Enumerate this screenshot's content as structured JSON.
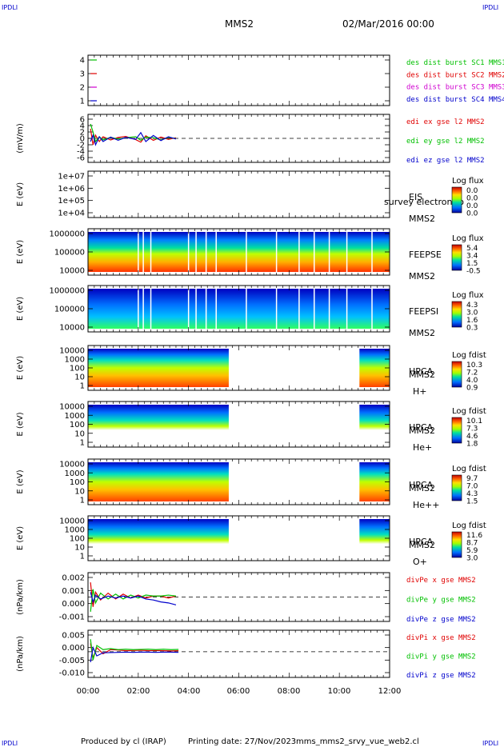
{
  "header": {
    "corner_tl": "IPDLI",
    "corner_tr": "IPDLI",
    "corner_bl": "IPDLI",
    "corner_br": "IPDLI",
    "spacecraft": "MMS2",
    "date": "02/Mar/2016 00:00"
  },
  "footer": {
    "produced": "Produced by cl (IRAP)",
    "printing": "Printing date: 27/Nov/2023",
    "script": "mms_mms2_srvy_vue_web2.cl"
  },
  "x_axis": {
    "ticks": [
      "00:00",
      "02:00",
      "04:00",
      "06:00",
      "08:00",
      "10:00",
      "12:00"
    ],
    "range_hours": [
      0,
      12
    ]
  },
  "colors": {
    "red": "#e00000",
    "green": "#00c000",
    "blue": "#0000cc",
    "magenta": "#d000d0",
    "mms1": "#00c000",
    "mms2": "#e00000",
    "mms3": "#d000d0",
    "mms4": "#0000cc"
  },
  "chart_data": [
    {
      "type": "line",
      "panel": "burst",
      "ylabel": "",
      "yticks": [
        "4",
        "3",
        "2",
        "1"
      ],
      "ylim": [
        0.5,
        4.5
      ],
      "legend": [
        "des dist burst SC1 MMS1",
        "des dist burst SC2 MMS2",
        "des dist burst SC3 MMS3",
        "des dist burst SC4 MMS4"
      ],
      "series": [
        {
          "name": "des dist burst SC1 MMS1",
          "level": 4,
          "x": [
            0.1,
            0.35
          ],
          "color": "#00c000"
        },
        {
          "name": "des dist burst SC2 MMS2",
          "level": 3,
          "x": [
            0.1,
            0.35
          ],
          "color": "#e00000"
        },
        {
          "name": "des dist burst SC3 MMS3",
          "level": 2,
          "x": [
            0.1,
            0.35
          ],
          "color": "#d000d0"
        },
        {
          "name": "des dist burst SC4 MMS4",
          "level": 1,
          "x": [
            0.1,
            0.35
          ],
          "color": "#0000cc"
        }
      ]
    },
    {
      "type": "line",
      "panel": "edi",
      "ylabel": "(mV/m)",
      "yticks": [
        "6",
        "4",
        "2",
        "0",
        "-2",
        "-4",
        "-6"
      ],
      "ylim": [
        -6,
        6
      ],
      "legend": [
        "edi ex gse l2 MMS2",
        "edi ey gse l2 MMS2",
        "edi ez gse l2 MMS2"
      ],
      "series": [
        {
          "name": "edi ex gse l2 MMS2",
          "color": "#e00000",
          "x": [
            0.1,
            0.2,
            0.3,
            0.45,
            0.6,
            0.9,
            1.2,
            1.5,
            1.9,
            2.1,
            2.3,
            2.6,
            2.9,
            3.2,
            3.5
          ],
          "y": [
            3,
            -2,
            1,
            -1,
            0.5,
            -0.5,
            0.3,
            0.6,
            -0.4,
            -1.2,
            0.8,
            -0.6,
            0.4,
            -0.3,
            0.2
          ]
        },
        {
          "name": "edi ey gse l2 MMS2",
          "color": "#00c000",
          "x": [
            0.1,
            0.2,
            0.3,
            0.45,
            0.6,
            0.9,
            1.2,
            1.5,
            1.9,
            2.1,
            2.3,
            2.6,
            2.9,
            3.2,
            3.5
          ],
          "y": [
            4.5,
            2,
            -1,
            0.5,
            -0.5,
            0.3,
            -0.2,
            0.2,
            0.5,
            -0.6,
            0.4,
            0.2,
            -0.5,
            0.3,
            -0.1
          ]
        },
        {
          "name": "edi ez gse l2 MMS2",
          "color": "#0000cc",
          "x": [
            0.1,
            0.2,
            0.3,
            0.45,
            0.6,
            0.9,
            1.2,
            1.5,
            1.9,
            2.1,
            2.3,
            2.6,
            2.9,
            3.2,
            3.5
          ],
          "y": [
            -1,
            1,
            -2,
            0.5,
            -1,
            0.4,
            -0.6,
            0.3,
            -0.3,
            1.8,
            -1.0,
            0.9,
            -0.7,
            0.5,
            -0.2
          ]
        }
      ]
    },
    {
      "type": "heatmap",
      "panel": "eis",
      "ylabel": "E (eV)",
      "yticks": [
        "1e+07",
        "1e+06",
        "1e+05",
        "1e+04"
      ],
      "labels": [
        "EIS",
        "MMS2"
      ],
      "overlay_text": "survey electron to",
      "cbar_title": "Log flux",
      "cbar_ticks": [
        "0.0",
        "0.0",
        "0.0",
        "0.0"
      ],
      "segments": []
    },
    {
      "type": "heatmap",
      "panel": "feeps_e",
      "ylabel": "E (eV)",
      "yticks": [
        "1000000",
        "100000",
        "10000"
      ],
      "labels": [
        "FEEPSE",
        "MMS2"
      ],
      "cbar_title": "Log flux",
      "cbar_ticks": [
        "5.4",
        "3.4",
        "1.5",
        "-0.5"
      ],
      "segments": [
        [
          0.0,
          12.0
        ]
      ]
    },
    {
      "type": "heatmap",
      "panel": "feeps_i",
      "ylabel": "E (eV)",
      "yticks": [
        "1000000",
        "100000",
        "10000"
      ],
      "labels": [
        "FEEPSI",
        "MMS2"
      ],
      "cbar_title": "Log flux",
      "cbar_ticks": [
        "4.3",
        "3.0",
        "1.6",
        "0.3"
      ],
      "segments": [
        [
          0.0,
          12.0
        ]
      ]
    },
    {
      "type": "heatmap",
      "panel": "hpca_h",
      "ylabel": "E (eV)",
      "yticks": [
        "10000",
        "1000",
        "100",
        "10",
        "1"
      ],
      "labels": [
        "HPCA",
        "MMS2",
        "H+"
      ],
      "cbar_title": "Log fdist",
      "cbar_ticks": [
        "10.3",
        "7.2",
        "4.0",
        "0.9"
      ],
      "segments": [
        [
          0.0,
          5.6
        ],
        [
          10.8,
          12.0
        ]
      ]
    },
    {
      "type": "heatmap",
      "panel": "hpca_he",
      "ylabel": "E (eV)",
      "yticks": [
        "10000",
        "1000",
        "100",
        "10",
        "1"
      ],
      "labels": [
        "HPCA",
        "MMS2",
        "He+"
      ],
      "cbar_title": "Log fdist",
      "cbar_ticks": [
        "10.1",
        "7.3",
        "4.6",
        "1.8"
      ],
      "segments": [
        [
          0.0,
          5.6
        ],
        [
          10.8,
          12.0
        ]
      ]
    },
    {
      "type": "heatmap",
      "panel": "hpca_hepp",
      "ylabel": "E (eV)",
      "yticks": [
        "10000",
        "1000",
        "100",
        "10",
        "1"
      ],
      "labels": [
        "HPCA",
        "MMS2",
        "He++"
      ],
      "cbar_title": "Log fdist",
      "cbar_ticks": [
        "9.7",
        "7.0",
        "4.3",
        "1.5"
      ],
      "segments": [
        [
          0.0,
          5.6
        ],
        [
          10.8,
          12.0
        ]
      ]
    },
    {
      "type": "heatmap",
      "panel": "hpca_o",
      "ylabel": "E (eV)",
      "yticks": [
        "10000",
        "1000",
        "100",
        "10",
        "1"
      ],
      "labels": [
        "HPCA",
        "MMS2",
        "O+"
      ],
      "cbar_title": "Log fdist",
      "cbar_ticks": [
        "11.6",
        "8.7",
        "5.9",
        "3.0"
      ],
      "segments": [
        [
          0.0,
          5.6
        ],
        [
          10.8,
          12.0
        ]
      ]
    },
    {
      "type": "line",
      "panel": "divpe",
      "ylabel": "(nPa/km)",
      "yticks": [
        "0.002",
        "0.001",
        "0.000",
        "-0.001"
      ],
      "ylim": [
        -0.002,
        0.002
      ],
      "legend": [
        "divPe x gse MMS2",
        "divPe y gse MMS2",
        "divPe z gse MMS2"
      ],
      "series": [
        {
          "name": "divPe x gse MMS2",
          "color": "#e00000",
          "x": [
            0.1,
            0.2,
            0.3,
            0.5,
            0.8,
            1.1,
            1.4,
            1.7,
            2.0,
            2.3,
            2.6,
            2.9,
            3.2,
            3.5
          ],
          "y": [
            0.0015,
            -0.001,
            0.0005,
            -0.0003,
            0.0004,
            -0.0002,
            0.0003,
            -0.0001,
            0.0002,
            -0.0001,
            0.0001,
            0.0001,
            -0.0001,
            0.0001
          ]
        },
        {
          "name": "divPe y gse MMS2",
          "color": "#00c000",
          "x": [
            0.1,
            0.2,
            0.3,
            0.5,
            0.8,
            1.1,
            1.4,
            1.7,
            2.0,
            2.3,
            2.6,
            2.9,
            3.2,
            3.5
          ],
          "y": [
            -0.0015,
            0.0008,
            -0.0006,
            0.0004,
            -0.0002,
            0.0003,
            -0.0002,
            0.0002,
            -0.0001,
            0.0002,
            0.0001,
            0.0001,
            0.0002,
            0.0001
          ]
        },
        {
          "name": "divPe z gse MMS2",
          "color": "#0000cc",
          "x": [
            0.1,
            0.2,
            0.3,
            0.5,
            0.8,
            1.1,
            1.4,
            1.7,
            2.0,
            2.3,
            2.6,
            2.9,
            3.2,
            3.5
          ],
          "y": [
            0.0005,
            -0.0005,
            0.0002,
            -0.0002,
            0.0001,
            -0.0001,
            0.0001,
            -0.0001,
            0.0001,
            -0.0002,
            -0.0003,
            -0.0005,
            -0.0006,
            -0.0008
          ]
        }
      ]
    },
    {
      "type": "line",
      "panel": "divpi",
      "ylabel": "(nPa/km)",
      "yticks": [
        "0.005",
        "0.000",
        "-0.005",
        "-0.010"
      ],
      "ylim": [
        -0.01,
        0.008
      ],
      "legend": [
        "divPi x gse MMS2",
        "divPi y gse MMS2",
        "divPi z gse MMS2"
      ],
      "series": [
        {
          "name": "divPi x gse MMS2",
          "color": "#e00000",
          "x": [
            0.1,
            0.2,
            0.35,
            0.6,
            0.9,
            1.2,
            1.5,
            1.8,
            2.1,
            2.4,
            2.7,
            3.0,
            3.3,
            3.6
          ],
          "y": [
            0.004,
            -0.003,
            0.002,
            -0.001,
            0.001,
            0.0008,
            0.0005,
            0.0006,
            0.0007,
            0.0005,
            0.0006,
            0.0005,
            0.0004,
            0.0005
          ]
        },
        {
          "name": "divPi y gse MMS2",
          "color": "#00c000",
          "x": [
            0.1,
            0.2,
            0.35,
            0.6,
            0.9,
            1.2,
            1.5,
            1.8,
            2.1,
            2.4,
            2.7,
            3.0,
            3.3,
            3.6
          ],
          "y": [
            0.006,
            -0.004,
            0.003,
            0.001,
            0.0015,
            0.001,
            0.0012,
            0.001,
            0.0011,
            0.0012,
            0.001,
            0.0012,
            0.001,
            0.0011
          ]
        },
        {
          "name": "divPi z gse MMS2",
          "color": "#0000cc",
          "x": [
            0.1,
            0.2,
            0.35,
            0.6,
            0.9,
            1.2,
            1.5,
            1.8,
            2.1,
            2.4,
            2.7,
            3.0,
            3.3,
            3.6
          ],
          "y": [
            -0.005,
            0.002,
            -0.002,
            -0.0005,
            -0.0004,
            -0.0003,
            -0.0002,
            -0.0003,
            -0.0002,
            -0.0002,
            -0.0003,
            -0.0002,
            -0.0002,
            -0.0003
          ]
        }
      ]
    }
  ]
}
